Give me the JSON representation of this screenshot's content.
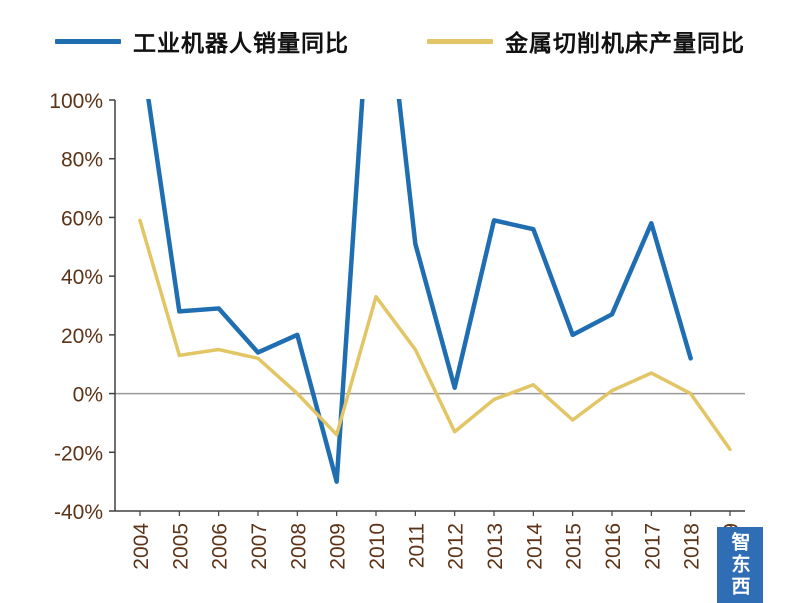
{
  "chart_data": {
    "type": "line",
    "title": "",
    "x_label": "",
    "y_label": "",
    "categories": [
      "2004",
      "2005",
      "2006",
      "2007",
      "2008",
      "2009",
      "2010",
      "2011",
      "2012",
      "2013",
      "2014",
      "2015",
      "2016",
      "2017",
      "2018",
      "2019"
    ],
    "series": [
      {
        "name": "工业机器人销量同比",
        "color": "#1f6eb2",
        "values": [
          120,
          28,
          29,
          14,
          20,
          -30,
          170,
          51,
          2,
          59,
          56,
          20,
          27,
          58,
          12,
          null
        ],
        "note": "2004 and 2010 peaks exceed the 100% axis top and are clipped; series ends at 2018"
      },
      {
        "name": "金属切削机床产量同比",
        "color": "#e2c565",
        "values": [
          59,
          13,
          15,
          12,
          0,
          -14,
          33,
          15,
          -13,
          -2,
          3,
          -9,
          1,
          7,
          0,
          -19
        ]
      }
    ],
    "ylim": [
      -40,
      100
    ],
    "yticks": [
      100,
      80,
      60,
      40,
      20,
      0,
      -20,
      -40
    ],
    "ytick_suffix": "%",
    "grid": false,
    "zero_line": true,
    "legend_position": "top"
  },
  "watermark": {
    "text": "智东西",
    "bg_color": "#2f6db4",
    "text_color": "#ffffff"
  },
  "colors": {
    "axis": "#404040",
    "zero_line": "#9a9a9a",
    "tick_label": "#5c3317"
  }
}
